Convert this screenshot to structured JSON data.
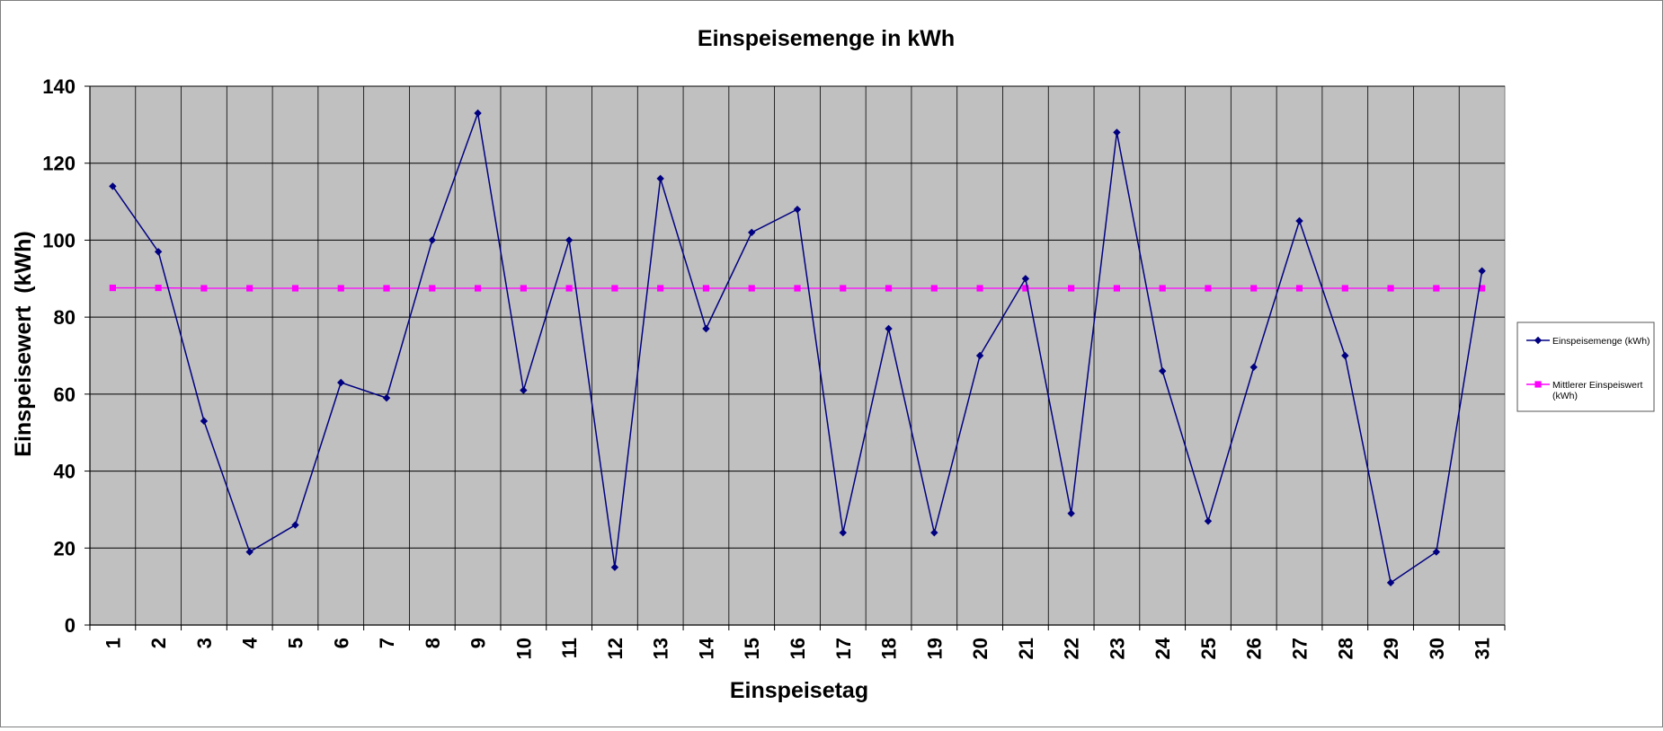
{
  "chart_data": {
    "type": "line",
    "title": "Einspeisemenge in kWh",
    "xlabel": "Einspeisetag",
    "ylabel": "Einspeisewert  (kWh)",
    "categories": [
      "1",
      "2",
      "3",
      "4",
      "5",
      "6",
      "7",
      "8",
      "9",
      "10",
      "11",
      "12",
      "13",
      "14",
      "15",
      "16",
      "17",
      "18",
      "19",
      "20",
      "21",
      "22",
      "23",
      "24",
      "25",
      "26",
      "27",
      "28",
      "29",
      "30",
      "31"
    ],
    "ylim": [
      0,
      140
    ],
    "yticks": [
      0,
      20,
      40,
      60,
      80,
      100,
      120,
      140
    ],
    "grid": true,
    "legend_position": "right",
    "series": [
      {
        "name": "Einspeisemenge (kWh)",
        "color": "#000080",
        "marker": "diamond",
        "values": [
          114,
          97,
          53,
          19,
          26,
          63,
          59,
          100,
          133,
          61,
          100,
          15,
          116,
          77,
          102,
          108,
          24,
          77,
          24,
          70,
          90,
          29,
          128,
          66,
          27,
          67,
          105,
          70,
          11,
          19,
          92
        ]
      },
      {
        "name": "Mittlerer Einspeiswert (kWh)",
        "color": "#ff00ff",
        "marker": "square",
        "values": [
          87.6,
          87.6,
          87.5,
          87.5,
          87.5,
          87.5,
          87.5,
          87.5,
          87.5,
          87.5,
          87.5,
          87.5,
          87.5,
          87.5,
          87.5,
          87.5,
          87.5,
          87.5,
          87.5,
          87.5,
          87.5,
          87.5,
          87.5,
          87.5,
          87.5,
          87.5,
          87.5,
          87.5,
          87.5,
          87.5,
          87.5
        ]
      }
    ]
  }
}
